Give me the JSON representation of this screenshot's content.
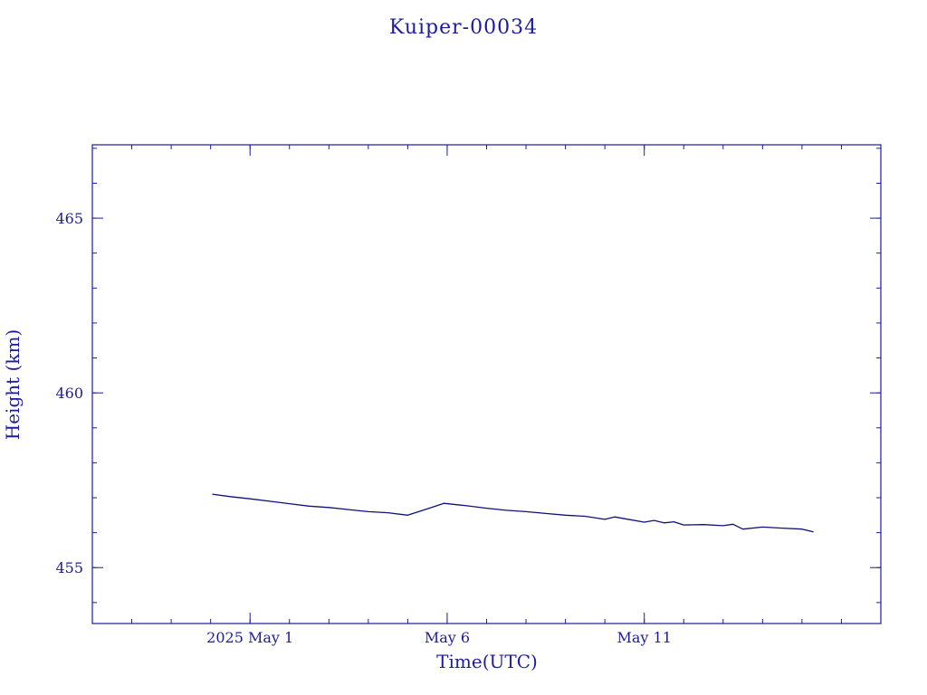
{
  "chart_data": {
    "type": "line",
    "title": "Kuiper-00034",
    "xlabel": "Time(UTC)",
    "ylabel": "Height (km)",
    "colors": {
      "axis": "#1c1c9c",
      "line": "#101078"
    },
    "xlim": [
      "2025-04-27T00:00",
      "2025-05-17T00:00"
    ],
    "ylim": [
      453.4,
      467.1
    ],
    "x_ticks": [
      {
        "x": "2025-05-01T00:00",
        "label": "2025 May  1"
      },
      {
        "x": "2025-05-06T00:00",
        "label": "May  6"
      },
      {
        "x": "2025-05-11T00:00",
        "label": "May 11"
      }
    ],
    "y_ticks": [
      {
        "y": 455,
        "label": "455"
      },
      {
        "y": 460,
        "label": "460"
      },
      {
        "y": 465,
        "label": "465"
      }
    ],
    "series": [
      {
        "points": [
          [
            "2025-04-30T01:00",
            457.1
          ],
          [
            "2025-04-30T12:00",
            457.03
          ],
          [
            "2025-05-01T00:00",
            456.97
          ],
          [
            "2025-05-01T12:00",
            456.9
          ],
          [
            "2025-05-02T00:00",
            456.83
          ],
          [
            "2025-05-02T12:00",
            456.76
          ],
          [
            "2025-05-03T00:00",
            456.72
          ],
          [
            "2025-05-03T12:00",
            456.66
          ],
          [
            "2025-05-04T00:00",
            456.6
          ],
          [
            "2025-05-04T12:00",
            456.57
          ],
          [
            "2025-05-05T00:00",
            456.5
          ],
          [
            "2025-05-05T12:00",
            456.68
          ],
          [
            "2025-05-05T22:00",
            456.84
          ],
          [
            "2025-05-06T12:00",
            456.77
          ],
          [
            "2025-05-07T00:00",
            456.7
          ],
          [
            "2025-05-07T12:00",
            456.64
          ],
          [
            "2025-05-08T00:00",
            456.6
          ],
          [
            "2025-05-08T12:00",
            456.55
          ],
          [
            "2025-05-09T00:00",
            456.5
          ],
          [
            "2025-05-09T12:00",
            456.47
          ],
          [
            "2025-05-10T00:00",
            456.38
          ],
          [
            "2025-05-10T06:00",
            456.45
          ],
          [
            "2025-05-10T12:00",
            456.4
          ],
          [
            "2025-05-11T00:00",
            456.3
          ],
          [
            "2025-05-11T06:00",
            456.35
          ],
          [
            "2025-05-11T12:00",
            456.28
          ],
          [
            "2025-05-11T18:00",
            456.31
          ],
          [
            "2025-05-12T00:00",
            456.22
          ],
          [
            "2025-05-12T12:00",
            456.23
          ],
          [
            "2025-05-13T00:00",
            456.2
          ],
          [
            "2025-05-13T06:00",
            456.24
          ],
          [
            "2025-05-13T12:00",
            456.1
          ],
          [
            "2025-05-14T00:00",
            456.16
          ],
          [
            "2025-05-14T12:00",
            456.13
          ],
          [
            "2025-05-15T00:00",
            456.1
          ],
          [
            "2025-05-15T07:00",
            456.02
          ]
        ]
      }
    ],
    "grid": false
  }
}
